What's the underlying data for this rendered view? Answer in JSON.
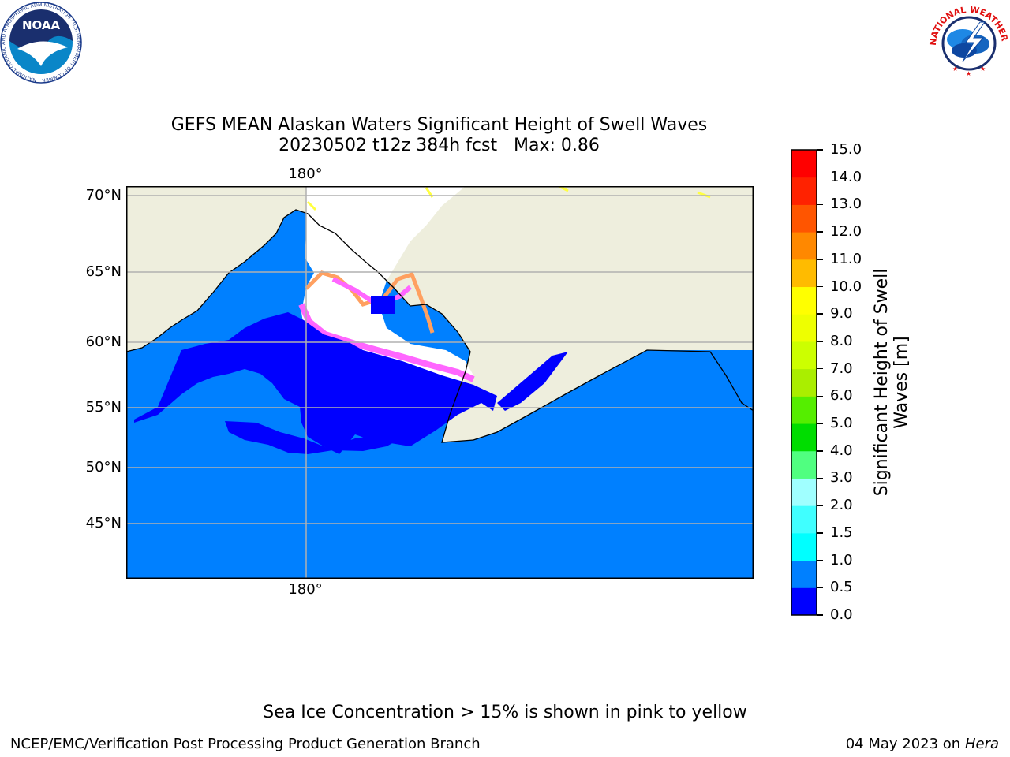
{
  "header": {
    "title_line1": "GEFS MEAN Alaskan Waters Significant Height of Swell Waves",
    "title_line2": "20230502 t12z 384h fcst   Max: 0.86"
  },
  "logos": {
    "noara_text": "NOAA",
    "noaa_ring_text": "NATIONAL OCEANIC AND ATMOSPHERIC ADMINISTRATION · U.S. DEPARTMENT OF COMMERCE",
    "nws_ring_text": "NATIONAL WEATHER SERVICE"
  },
  "map": {
    "lon_label_top": "180°",
    "lon_label_bottom": "180°",
    "lat_labels": [
      "70°N",
      "65°N",
      "60°N",
      "55°N",
      "50°N",
      "45°N"
    ],
    "colors": {
      "land": "#eeeedd",
      "swell_low": "#0000ff",
      "swell_mid": "#0080ff",
      "ice_pink": "#ff66ff",
      "ice_orange": "#ffa060",
      "ice_yellow": "#ffff40",
      "gridline": "#b0b0b0"
    }
  },
  "colorbar": {
    "title_line1": "Significant Height of Swell",
    "title_line2": "Waves [m]",
    "ticks": [
      "0.0",
      "0.5",
      "1.0",
      "1.5",
      "2.0",
      "3.0",
      "4.0",
      "5.0",
      "6.0",
      "7.0",
      "8.0",
      "9.0",
      "10.0",
      "11.0",
      "12.0",
      "13.0",
      "14.0",
      "15.0"
    ],
    "colors": [
      "#0000ff",
      "#0080ff",
      "#00ffff",
      "#40ffff",
      "#a0ffff",
      "#50ff80",
      "#00dd00",
      "#55ee00",
      "#aaee00",
      "#ccff00",
      "#eeff00",
      "#ffff00",
      "#ffbb00",
      "#ff8800",
      "#ff5500",
      "#ff2200",
      "#ff0000"
    ]
  },
  "footer": {
    "note": "Sea Ice Concentration > 15% is shown in pink to yellow",
    "credit": "NCEP/EMC/Verification Post Processing Product Generation Branch",
    "date": "04 May 2023 on",
    "machine": "Hera"
  }
}
